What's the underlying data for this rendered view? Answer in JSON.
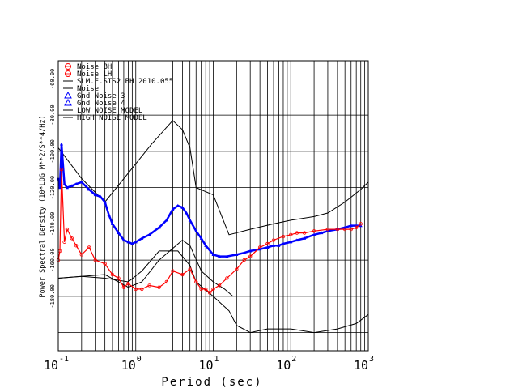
{
  "chart_data": {
    "type": "scatter",
    "title": "",
    "xlabel": "Period (sec)",
    "ylabel": "Power Spectral Density (10*LOG M**2/S**4/Hz)",
    "xscale": "log",
    "xlim": [
      0.1,
      1000
    ],
    "ylim": [
      -210,
      -50
    ],
    "x_tick_labels": [
      {
        "base": "10",
        "exp": "-1"
      },
      {
        "base": "10",
        "exp": "0"
      },
      {
        "base": "10",
        "exp": "1"
      },
      {
        "base": "10",
        "exp": "2"
      },
      {
        "base": "10",
        "exp": "3"
      }
    ],
    "y_ticks": [
      -60,
      -80,
      -100,
      -120,
      -140,
      -160,
      -180
    ],
    "y_tick_labels": [
      "-60.00",
      "-80.00",
      "-100.00",
      "-120.00",
      "-140.00",
      "-160.00",
      "-180.00"
    ],
    "grid": true,
    "legend_position": "top-left",
    "legend": [
      {
        "label": "Noise BH",
        "marker": "circle",
        "color": "#ff0000"
      },
      {
        "label": "Noise LH",
        "marker": "circle",
        "color": "#ff0000"
      },
      {
        "label": "SLM.E.STS2 BH  2010.055",
        "marker": "line",
        "color": "#000000"
      },
      {
        "label": "Noise",
        "marker": "line",
        "color": "#000000"
      },
      {
        "label": "Gnd Noise 3",
        "marker": "triangle",
        "color": "#0000ff"
      },
      {
        "label": "Gnd Noise 4",
        "marker": "triangle",
        "color": "#0000ff"
      },
      {
        "label": "LOW NOISE MODEL",
        "marker": "line",
        "color": "#000000"
      },
      {
        "label": "HIGH NOISE MODEL",
        "marker": "line",
        "color": "#000000"
      }
    ],
    "series": [
      {
        "color": "#0000ff",
        "x": [
          0.1,
          0.105,
          0.11,
          0.12,
          0.13,
          0.15,
          0.17,
          0.2,
          0.25,
          0.3,
          0.35,
          0.4,
          0.45,
          0.5,
          0.6,
          0.7,
          0.8,
          0.9,
          1.0,
          1.2,
          1.5,
          2.0,
          2.5,
          3.0,
          3.5,
          4.0,
          4.5,
          5.0,
          6.0,
          7.0,
          8.0,
          10,
          12,
          15,
          20,
          25,
          30,
          40,
          50,
          60,
          70,
          80,
          100,
          120,
          150,
          200,
          250,
          300,
          400,
          500,
          600,
          700,
          800
        ],
        "y": [
          -115,
          -120,
          -96,
          -118,
          -120,
          -119,
          -118,
          -117,
          -121,
          -124,
          -125,
          -128,
          -135,
          -140,
          -145,
          -149,
          -150,
          -151,
          -150,
          -148,
          -146,
          -142,
          -138,
          -132,
          -130,
          -131,
          -134,
          -138,
          -144,
          -148,
          -152,
          -157,
          -158,
          -158,
          -157,
          -156,
          -155,
          -154,
          -153,
          -152,
          -152,
          -151,
          -150,
          -149,
          -148,
          -146,
          -145,
          -144,
          -143,
          -142,
          -141,
          -141,
          -141
        ]
      },
      {
        "color": "#ff0000",
        "x": [
          0.1,
          0.105,
          0.11,
          0.12,
          0.13,
          0.15,
          0.17,
          0.2,
          0.25,
          0.3,
          0.4,
          0.5,
          0.6,
          0.7,
          0.8,
          1.0,
          1.2,
          1.5,
          2.0,
          2.5,
          3.0,
          4.0,
          5.0,
          6.0,
          7.0,
          8.0,
          9.0,
          10,
          12,
          15,
          20,
          25,
          30,
          40,
          50,
          60,
          80,
          100,
          120,
          150,
          200,
          300,
          400,
          500,
          600,
          700,
          800
        ],
        "y": [
          -160,
          -155,
          -110,
          -150,
          -143,
          -148,
          -152,
          -157,
          -153,
          -160,
          -162,
          -168,
          -170,
          -175,
          -173,
          -176,
          -176,
          -174,
          -175,
          -172,
          -166,
          -168,
          -165,
          -172,
          -176,
          -176,
          -178,
          -176,
          -174,
          -170,
          -165,
          -160,
          -158,
          -153,
          -151,
          -149,
          -147,
          -146,
          -145,
          -145,
          -144,
          -143,
          -143,
          -143,
          -143,
          -142,
          -140
        ]
      }
    ],
    "reference_lines": [
      {
        "x": [
          0.1,
          0.2,
          0.4,
          0.8,
          1.6,
          3.0,
          4.0,
          5.0,
          6.0,
          10,
          16,
          30,
          60,
          100,
          200,
          300,
          500,
          800,
          1000
        ],
        "y": [
          -98,
          -115,
          -128,
          -112,
          -96,
          -83,
          -88,
          -98,
          -120,
          -124,
          -146,
          -143,
          -140,
          -138,
          -136,
          -134,
          -128,
          -121,
          -117
        ]
      },
      {
        "x": [
          0.1,
          0.2,
          0.4,
          0.8,
          1.2,
          2.0,
          3.5,
          5.0,
          6.0,
          10,
          16,
          20,
          30,
          50,
          100,
          200,
          400,
          700,
          1000
        ],
        "y": [
          -170,
          -169,
          -170,
          -172,
          -166,
          -155,
          -155,
          -163,
          -172,
          -180,
          -188,
          -196,
          -200,
          -198,
          -198,
          -200,
          -198,
          -195,
          -190
        ]
      },
      {
        "x": [
          0.1,
          0.4,
          0.8,
          1.2,
          2.0,
          4.0,
          5.0,
          7.0,
          10,
          14,
          18
        ],
        "y": [
          -170,
          -168,
          -175,
          -172,
          -160,
          -149,
          -152,
          -166,
          -172,
          -176,
          -180
        ]
      }
    ]
  }
}
